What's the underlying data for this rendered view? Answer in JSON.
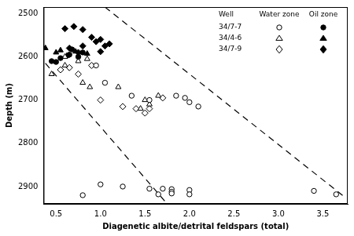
{
  "chart_data": {
    "type": "scatter",
    "x_label": "Diagenetic albite/detrital feldspars (total)",
    "y_label": "Depth (m)",
    "xlim": [
      0.36,
      3.78
    ],
    "ylim": [
      2485,
      2940
    ],
    "xticks": [
      0.5,
      {
        "value": 1,
        "label": "1.0"
      },
      1.5,
      {
        "value": 2,
        "label": "2.0"
      },
      2.5,
      {
        "value": 3,
        "label": "3.0"
      },
      3.5
    ],
    "yticks": [
      2500,
      2600,
      2700,
      2800,
      2900
    ],
    "grid": false,
    "legend": "upper right",
    "legend_header": [
      "Well",
      "Water zone",
      "Oil zone"
    ],
    "series": [
      {
        "name": "34/7-7",
        "zone": "Water zone",
        "marker": "circle",
        "color": "#000000",
        "x": [
          0.95,
          1.05,
          1.35,
          1.55,
          1.85,
          1.95,
          2.0,
          2.1,
          0.8,
          1.0,
          1.25,
          1.55,
          1.65,
          1.7,
          1.8,
          1.8,
          1.8,
          2.0,
          2.0,
          3.4,
          3.65
        ],
        "y": [
          2620,
          2660,
          2690,
          2700,
          2690,
          2695,
          2705,
          2715,
          2920,
          2895,
          2900,
          2905,
          2918,
          2905,
          2906,
          2912,
          2916,
          2908,
          2918,
          2910,
          2918
        ]
      },
      {
        "name": "34/7-7",
        "zone": "Oil zone",
        "marker": "circle",
        "color": "#000000",
        "x": [
          0.45,
          0.5,
          0.55,
          0.65,
          0.68,
          0.75,
          0.8
        ],
        "y": [
          2610,
          2612,
          2603,
          2595,
          2583,
          2600,
          2590
        ]
      },
      {
        "name": "34/4-6",
        "zone": "Water zone",
        "marker": "triangle",
        "color": "#000000",
        "x": [
          0.6,
          0.75,
          0.85,
          0.45,
          0.6,
          0.8,
          0.88,
          1.2,
          1.5,
          1.55,
          1.65,
          1.45
        ],
        "y": [
          2600,
          2610,
          2605,
          2640,
          2620,
          2660,
          2670,
          2670,
          2700,
          2710,
          2690,
          2720
        ]
      },
      {
        "name": "34/4-6",
        "zone": "Oil zone",
        "marker": "triangle",
        "color": "#000000",
        "x": [
          0.38,
          0.5,
          0.55,
          0.62,
          0.72,
          0.85
        ],
        "y": [
          2580,
          2590,
          2585,
          2598,
          2588,
          2593
        ]
      },
      {
        "name": "34/7-9",
        "zone": "Water zone",
        "marker": "diamond",
        "color": "#000000",
        "x": [
          0.55,
          0.65,
          0.75,
          0.9,
          1.0,
          1.25,
          1.4,
          1.5,
          1.55,
          1.7
        ],
        "y": [
          2630,
          2625,
          2640,
          2620,
          2700,
          2715,
          2720,
          2730,
          2720,
          2695
        ]
      },
      {
        "name": "34/7-9",
        "zone": "Oil zone",
        "marker": "diamond",
        "color": "#000000",
        "x": [
          0.6,
          0.7,
          0.8,
          0.9,
          0.95,
          1.0,
          1.05,
          1.1,
          0.65,
          0.8,
          1.0,
          0.75
        ],
        "y": [
          2535,
          2530,
          2537,
          2555,
          2565,
          2560,
          2575,
          2570,
          2580,
          2575,
          2588,
          2590
        ]
      }
    ],
    "trend_lines": [
      {
        "x": [
          0.38,
          1.75
        ],
        "y": [
          2615,
          2940
        ],
        "line_style": "dashed",
        "color": "#000000"
      },
      {
        "x": [
          1.05,
          3.75
        ],
        "y": [
          2485,
          2925
        ],
        "line_style": "dashed",
        "color": "#000000"
      }
    ]
  }
}
